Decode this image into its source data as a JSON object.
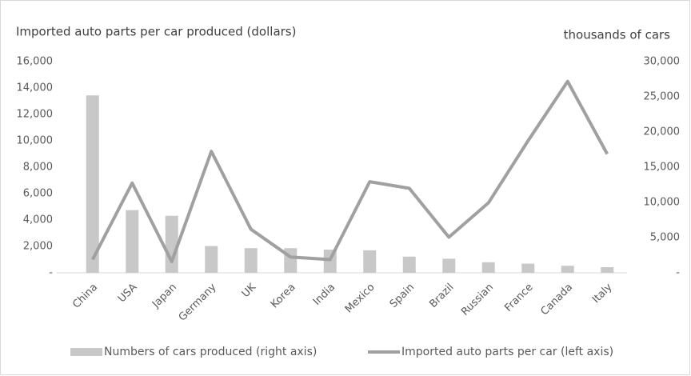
{
  "chart_data": {
    "type": "bar_line",
    "y_label": "Imported auto parts per car produced (dollars)",
    "y2_label": "thousands of cars",
    "categories": [
      "China",
      "USA",
      "Japan",
      "Germany",
      "UK",
      "Korea",
      "India",
      "Mexico",
      "Spain",
      "Brazil",
      "Russian",
      "France",
      "Canada",
      "Italy"
    ],
    "series": [
      {
        "name": "Numbers of cars produced (right axis)",
        "type": "bar",
        "axis": "y2",
        "color": "#c8c8c8",
        "values": [
          25200,
          8900,
          8100,
          3800,
          3500,
          3500,
          3300,
          3200,
          2300,
          2000,
          1500,
          1300,
          1000,
          800
        ]
      },
      {
        "name": "Imported auto parts per car (left axis)",
        "type": "line",
        "axis": "y",
        "color": "#a0a0a0",
        "values": [
          1000,
          6800,
          850,
          9200,
          3300,
          1200,
          1000,
          6900,
          6400,
          2700,
          5300,
          10000,
          14500,
          9000
        ]
      }
    ],
    "ylim": [
      0,
      16000
    ],
    "yticks": [
      {
        "value": 0,
        "label": "-"
      },
      {
        "value": 2000,
        "label": "2,000"
      },
      {
        "value": 4000,
        "label": "4,000"
      },
      {
        "value": 6000,
        "label": "6,000"
      },
      {
        "value": 8000,
        "label": "8,000"
      },
      {
        "value": 10000,
        "label": "10,000"
      },
      {
        "value": 12000,
        "label": "12,000"
      },
      {
        "value": 14000,
        "label": "14,000"
      },
      {
        "value": 16000,
        "label": "16,000"
      }
    ],
    "y2lim": [
      0,
      30000
    ],
    "y2ticks": [
      {
        "value": 0,
        "label": "-"
      },
      {
        "value": 5000,
        "label": "5,000"
      },
      {
        "value": 10000,
        "label": "10,000"
      },
      {
        "value": 15000,
        "label": "15,000"
      },
      {
        "value": 20000,
        "label": "20,000"
      },
      {
        "value": 25000,
        "label": "25,000"
      },
      {
        "value": 30000,
        "label": "30,000"
      }
    ],
    "grid": false,
    "legend": "bottom"
  }
}
